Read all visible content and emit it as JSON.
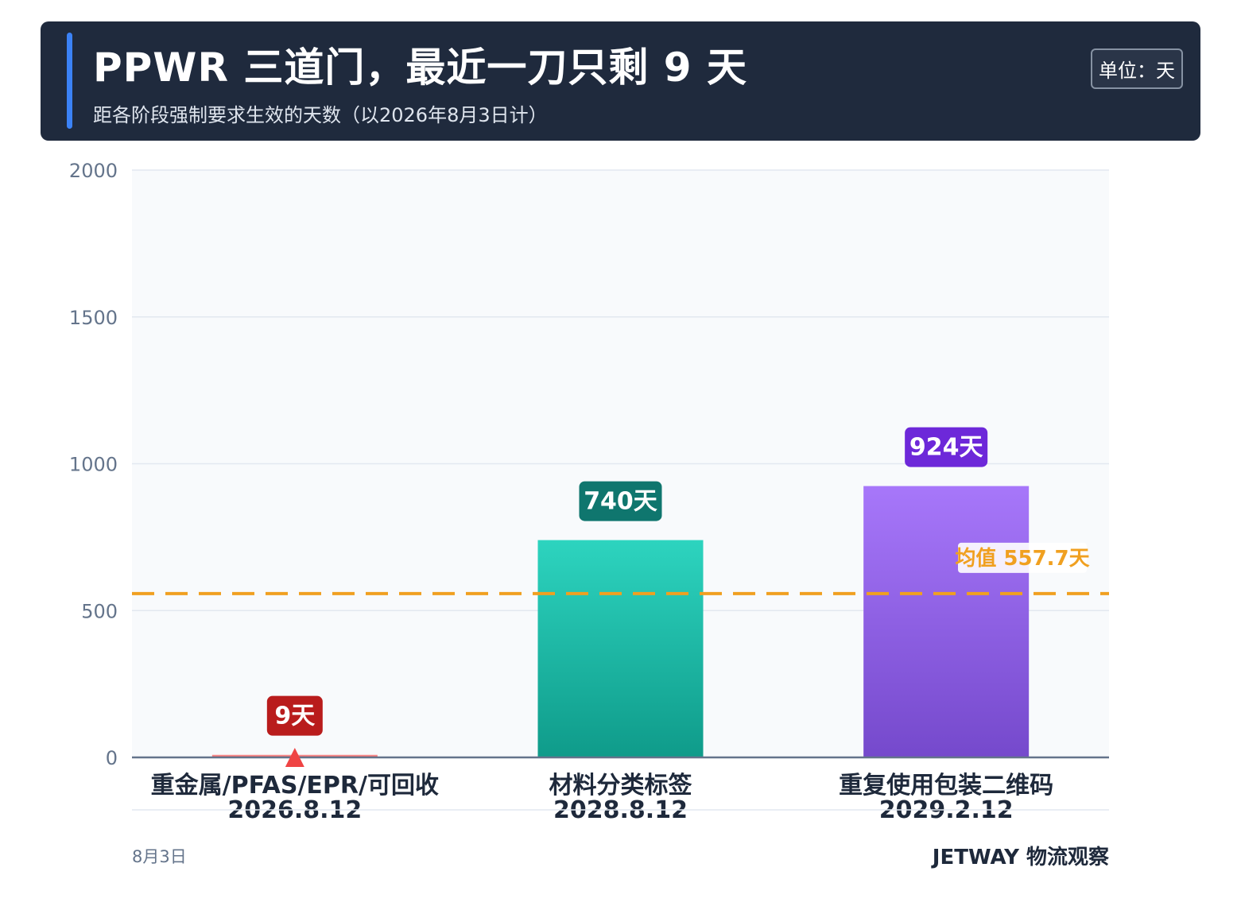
{
  "header": {
    "title": "PPWR 三道门，最近一刀只剩 9 天",
    "subtitle": "距各阶段强制要求生效的天数（以2026年8月3日计）",
    "unit": "单位：天"
  },
  "chart_data": {
    "type": "bar",
    "categories": [
      "重金属/PFAS/EPR/可回收",
      "材料分类标签",
      "重复使用包装二维码"
    ],
    "dates": [
      "2026.8.12",
      "2028.8.12",
      "2029.2.12"
    ],
    "values": [
      9,
      740,
      924
    ],
    "value_labels": [
      "9天",
      "740天",
      "924天"
    ],
    "ylim": [
      0,
      2000
    ],
    "yticks": [
      0,
      500,
      1000,
      1500,
      2000
    ],
    "grid": true,
    "mean": {
      "value": 557.7,
      "label": "均值 557.7天"
    },
    "colors": {
      "bars": [
        [
          "#fca5a5",
          "#ef4444"
        ],
        [
          "#2dd4bf",
          "#0f9b8a"
        ],
        [
          "#a777fa",
          "#7549cc"
        ]
      ],
      "labels": [
        "#b91c1c",
        "#0f766e",
        "#6d28d9"
      ],
      "mean_line": "#f0a020",
      "marker": "#ef4444"
    }
  },
  "footer": {
    "date": "8月3日",
    "brand": "JETWAY 物流观察"
  }
}
